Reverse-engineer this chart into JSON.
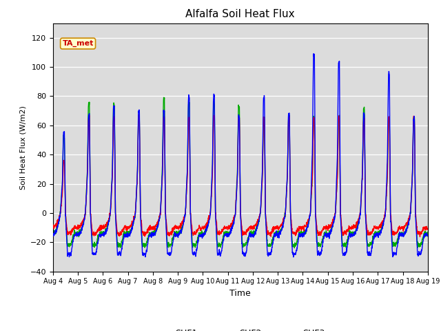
{
  "title": "Alfalfa Soil Heat Flux",
  "xlabel": "Time",
  "ylabel": "Soil Heat Flux (W/m2)",
  "ylim": [
    -40,
    130
  ],
  "yticks": [
    -40,
    -20,
    0,
    20,
    40,
    60,
    80,
    100,
    120
  ],
  "colors": {
    "SHF1": "#ff0000",
    "SHF2": "#0000ff",
    "SHF3": "#00aa00"
  },
  "legend_label": "TA_met",
  "legend_label_color": "#cc0000",
  "legend_label_bg": "#ffffcc",
  "legend_label_edge": "#cc8800",
  "background_color": "#dcdcdc",
  "line_width": 1.0,
  "start_day": 4,
  "end_day": 19,
  "points_per_day": 144,
  "shf1_night": -10,
  "shf1_trough": -14,
  "shf2_night": -15,
  "shf2_trough": -28,
  "shf3_night": -14,
  "shf3_trough": -22,
  "peaks_shf1": [
    36,
    66,
    65,
    65,
    65,
    65,
    65,
    65,
    65,
    65,
    65,
    65,
    65,
    65,
    65
  ],
  "peaks_shf2": [
    55,
    67,
    73,
    70,
    70,
    80,
    80,
    65,
    79,
    68,
    109,
    103,
    68,
    95,
    65
  ],
  "peaks_shf3": [
    52,
    75,
    75,
    65,
    78,
    75,
    75,
    73,
    65,
    65,
    65,
    65,
    72,
    65,
    65
  ]
}
